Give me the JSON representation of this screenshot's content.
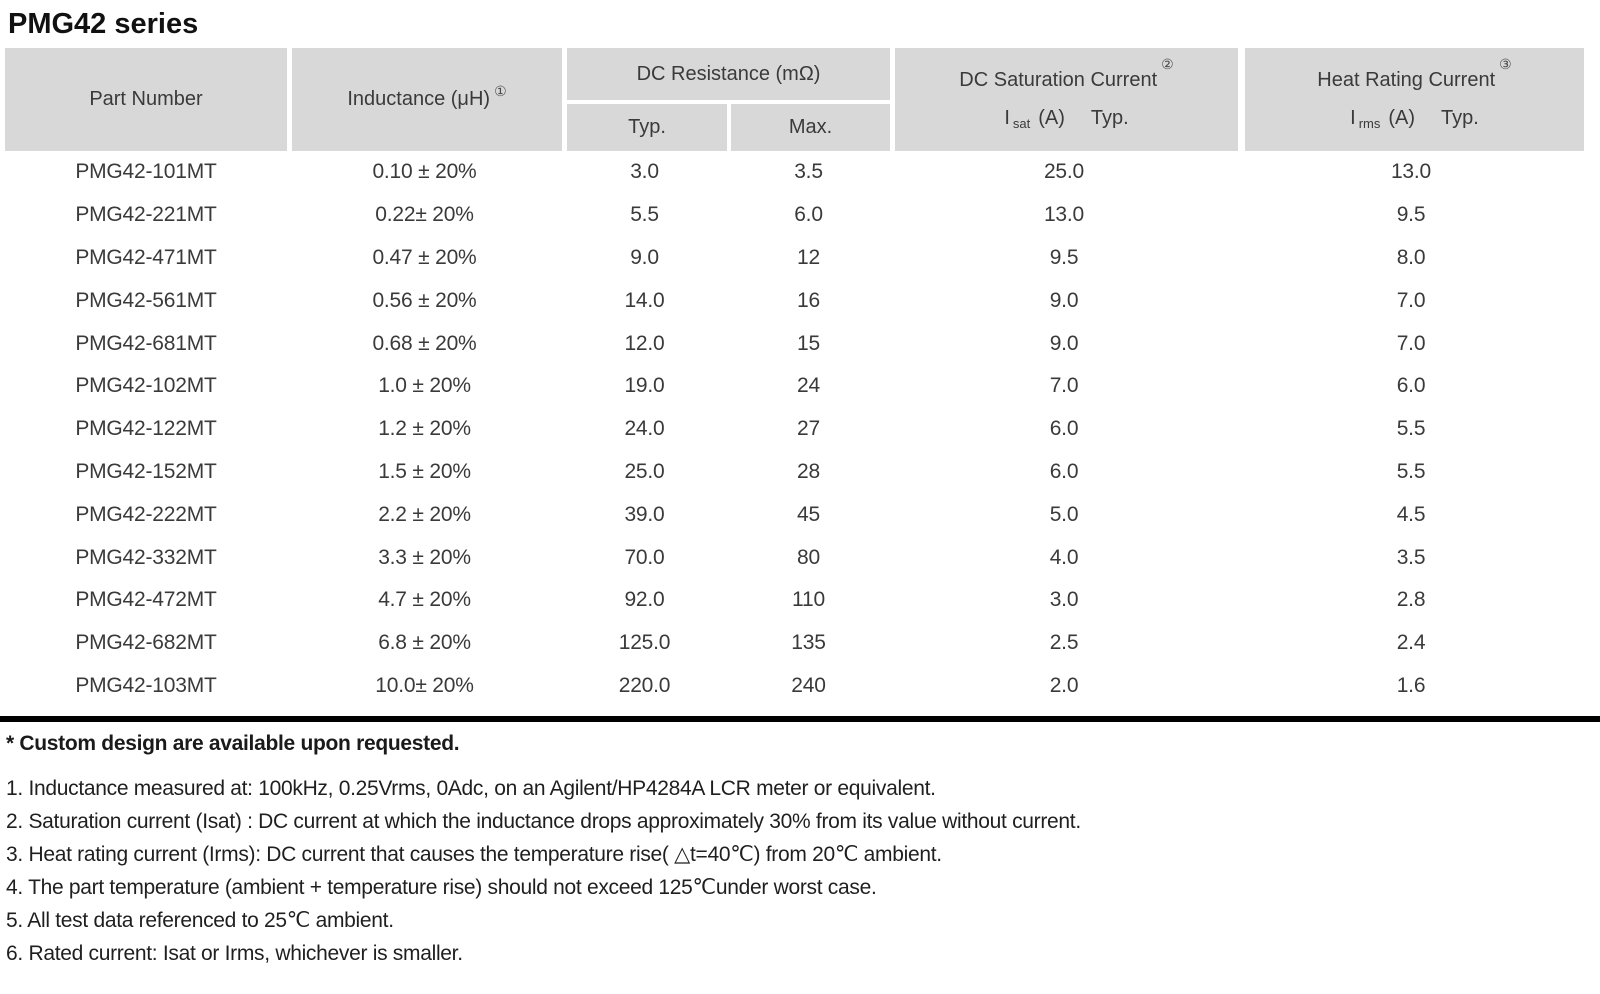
{
  "page": {
    "title": "PMG42 series"
  },
  "colors": {
    "header_bg": "#d8d8d8",
    "text_dark": "#3a3a3a",
    "rule_black": "#000000"
  },
  "table": {
    "header": {
      "part_number": "Part Number",
      "inductance_label": "Inductance (μH)",
      "inductance_ref": "①",
      "dc_resistance_label": "DC Resistance (mΩ)",
      "typ_label": "Typ.",
      "max_label": "Max.",
      "saturation_label": "DC Saturation Current",
      "saturation_ref": "②",
      "saturation_symbol_base": "I",
      "saturation_symbol_sub": "sat",
      "saturation_unit": "(A)",
      "saturation_typ": "Typ.",
      "heat_label": "Heat Rating Current",
      "heat_ref": "③",
      "heat_symbol_base": "I",
      "heat_symbol_sub": "rms",
      "heat_unit": "(A)",
      "heat_typ": "Typ."
    },
    "rows": [
      {
        "part": "PMG42-101MT",
        "inductance": "0.10 ± 20%",
        "dcr_typ": "3.0",
        "dcr_max": "3.5",
        "isat_typ": "25.0",
        "irms_typ": "13.0"
      },
      {
        "part": "PMG42-221MT",
        "inductance": "0.22± 20%",
        "dcr_typ": "5.5",
        "dcr_max": "6.0",
        "isat_typ": "13.0",
        "irms_typ": "9.5"
      },
      {
        "part": "PMG42-471MT",
        "inductance": "0.47 ± 20%",
        "dcr_typ": "9.0",
        "dcr_max": "12",
        "isat_typ": "9.5",
        "irms_typ": "8.0"
      },
      {
        "part": "PMG42-561MT",
        "inductance": "0.56 ± 20%",
        "dcr_typ": "14.0",
        "dcr_max": "16",
        "isat_typ": "9.0",
        "irms_typ": "7.0"
      },
      {
        "part": "PMG42-681MT",
        "inductance": "0.68 ± 20%",
        "dcr_typ": "12.0",
        "dcr_max": "15",
        "isat_typ": "9.0",
        "irms_typ": "7.0"
      },
      {
        "part": "PMG42-102MT",
        "inductance": "1.0 ± 20%",
        "dcr_typ": "19.0",
        "dcr_max": "24",
        "isat_typ": "7.0",
        "irms_typ": "6.0"
      },
      {
        "part": "PMG42-122MT",
        "inductance": "1.2 ± 20%",
        "dcr_typ": "24.0",
        "dcr_max": "27",
        "isat_typ": "6.0",
        "irms_typ": "5.5"
      },
      {
        "part": "PMG42-152MT",
        "inductance": "1.5 ± 20%",
        "dcr_typ": "25.0",
        "dcr_max": "28",
        "isat_typ": "6.0",
        "irms_typ": "5.5"
      },
      {
        "part": "PMG42-222MT",
        "inductance": "2.2 ± 20%",
        "dcr_typ": "39.0",
        "dcr_max": "45",
        "isat_typ": "5.0",
        "irms_typ": "4.5"
      },
      {
        "part": "PMG42-332MT",
        "inductance": "3.3 ± 20%",
        "dcr_typ": "70.0",
        "dcr_max": "80",
        "isat_typ": "4.0",
        "irms_typ": "3.5"
      },
      {
        "part": "PMG42-472MT",
        "inductance": "4.7 ± 20%",
        "dcr_typ": "92.0",
        "dcr_max": "110",
        "isat_typ": "3.0",
        "irms_typ": "2.8"
      },
      {
        "part": "PMG42-682MT",
        "inductance": "6.8 ± 20%",
        "dcr_typ": "125.0",
        "dcr_max": "135",
        "isat_typ": "2.5",
        "irms_typ": "2.4"
      },
      {
        "part": "PMG42-103MT",
        "inductance": "10.0± 20%",
        "dcr_typ": "220.0",
        "dcr_max": "240",
        "isat_typ": "2.0",
        "irms_typ": "1.6"
      }
    ]
  },
  "footer": {
    "custom_note": "* Custom design are available upon requested.",
    "notes": [
      "1. Inductance measured at: 100kHz, 0.25Vrms, 0Adc, on an Agilent/HP4284A LCR meter or equivalent.",
      "2. Saturation current (Isat) : DC current at which the inductance drops approximately 30% from its value without current.",
      "3. Heat rating current (Irms): DC current that causes the temperature rise( △t=40℃) from 20℃ ambient.",
      "4. The part temperature (ambient + temperature rise) should not exceed 125℃under worst case.",
      "5. All test data referenced to 25℃ ambient.",
      "6. Rated current: Isat or Irms, whichever is smaller."
    ]
  }
}
